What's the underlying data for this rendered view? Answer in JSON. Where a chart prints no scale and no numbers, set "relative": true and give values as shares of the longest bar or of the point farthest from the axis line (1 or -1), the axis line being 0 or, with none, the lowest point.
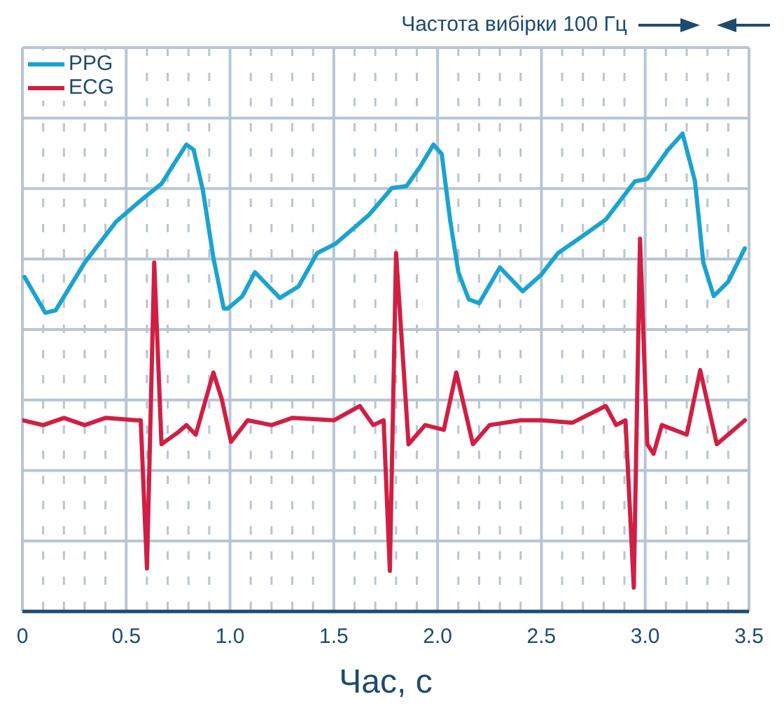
{
  "chart_data": {
    "type": "line",
    "relative": true,
    "xlabel": "Час, с",
    "annotations": [
      "Частота вибірки 100 Гц"
    ],
    "legend": "top left",
    "grid": true,
    "line_style": "solid",
    "marker": "none",
    "xlim": [
      0,
      3.5
    ],
    "xticks": [
      0,
      {
        "value": 0.1,
        "label": null
      },
      {
        "value": 0.2,
        "label": null
      },
      {
        "value": 0.3,
        "label": null
      },
      {
        "value": 0.4,
        "label": null
      },
      {
        "value": 0.5,
        "label": "0.5"
      },
      {
        "value": 0.6,
        "label": null
      },
      {
        "value": 0.7,
        "label": null
      },
      {
        "value": 0.8,
        "label": null
      },
      {
        "value": 0.9,
        "label": null
      },
      {
        "value": 1,
        "label": "1.0"
      },
      {
        "value": 1.1,
        "label": null
      },
      {
        "value": 1.2,
        "label": null
      },
      {
        "value": 1.3,
        "label": null
      },
      {
        "value": 1.4,
        "label": null
      },
      {
        "value": 1.5,
        "label": "1.5"
      },
      {
        "value": 1.6,
        "label": null
      },
      {
        "value": 1.7,
        "label": null
      },
      {
        "value": 1.8,
        "label": null
      },
      {
        "value": 1.9,
        "label": null
      },
      {
        "value": 2,
        "label": "2.0"
      },
      {
        "value": 2.1,
        "label": null
      },
      {
        "value": 2.2,
        "label": null
      },
      {
        "value": 2.3,
        "label": null
      },
      {
        "value": 2.4,
        "label": null
      },
      {
        "value": 2.5,
        "label": "2.5"
      },
      {
        "value": 2.6,
        "label": null
      },
      {
        "value": 2.7,
        "label": null
      },
      {
        "value": 2.8,
        "label": null
      },
      {
        "value": 2.9,
        "label": null
      },
      {
        "value": 3,
        "label": "3.0"
      },
      {
        "value": 3.1,
        "label": null
      },
      {
        "value": 3.2,
        "label": null
      },
      {
        "value": 3.3,
        "label": null
      },
      {
        "value": 3.4,
        "label": null
      },
      {
        "value": 3.5,
        "label": "3.5"
      }
    ],
    "series": [
      {
        "name": "PPG",
        "color": "#1aa3d0",
        "x": [
          0.01,
          0.11,
          0.16,
          0.3,
          0.45,
          0.57,
          0.67,
          0.735,
          0.79,
          0.825,
          0.87,
          0.92,
          0.97,
          0.99,
          1.06,
          1.12,
          1.24,
          1.33,
          1.42,
          1.51,
          1.67,
          1.78,
          1.85,
          1.915,
          1.98,
          2.02,
          2.06,
          2.1,
          2.15,
          2.2,
          2.3,
          2.41,
          2.5,
          2.58,
          2.68,
          2.81,
          2.95,
          3.01,
          3.11,
          3.18,
          3.24,
          3.28,
          3.33,
          3.4,
          3.48
        ],
        "values": [
          0.7,
          0.625,
          0.63,
          0.73,
          0.815,
          0.86,
          0.895,
          0.94,
          0.977,
          0.966,
          0.88,
          0.74,
          0.634,
          0.634,
          0.66,
          0.71,
          0.656,
          0.68,
          0.75,
          0.77,
          0.83,
          0.886,
          0.89,
          0.93,
          0.977,
          0.957,
          0.82,
          0.71,
          0.653,
          0.645,
          0.72,
          0.67,
          0.705,
          0.75,
          0.78,
          0.82,
          0.9,
          0.905,
          0.966,
          1.0,
          0.9,
          0.73,
          0.66,
          0.69,
          0.76
        ]
      },
      {
        "name": "ECG",
        "color": "#d01f44",
        "x": [
          0,
          0.1,
          0.2,
          0.3,
          0.4,
          0.55,
          0.57,
          0.6,
          0.635,
          0.67,
          0.75,
          0.79,
          0.835,
          0.92,
          0.96,
          1.005,
          1.085,
          1.2,
          1.3,
          1.5,
          1.625,
          1.69,
          1.74,
          1.77,
          1.8,
          1.86,
          1.94,
          2.03,
          2.09,
          2.17,
          2.25,
          2.4,
          2.5,
          2.65,
          2.81,
          2.86,
          2.905,
          2.945,
          2.975,
          3.01,
          3.04,
          3.08,
          3.2,
          3.265,
          3.345,
          3.48
        ],
        "values": [
          0.4,
          0.39,
          0.405,
          0.39,
          0.405,
          0.4,
          0.4,
          0.09,
          0.73,
          0.35,
          0.375,
          0.39,
          0.37,
          0.5,
          0.445,
          0.355,
          0.4,
          0.39,
          0.405,
          0.4,
          0.43,
          0.39,
          0.4,
          0.085,
          0.75,
          0.35,
          0.39,
          0.38,
          0.5,
          0.35,
          0.39,
          0.4,
          0.4,
          0.395,
          0.43,
          0.39,
          0.4,
          0.05,
          0.78,
          0.35,
          0.33,
          0.39,
          0.37,
          0.505,
          0.35,
          0.4
        ]
      }
    ]
  }
}
